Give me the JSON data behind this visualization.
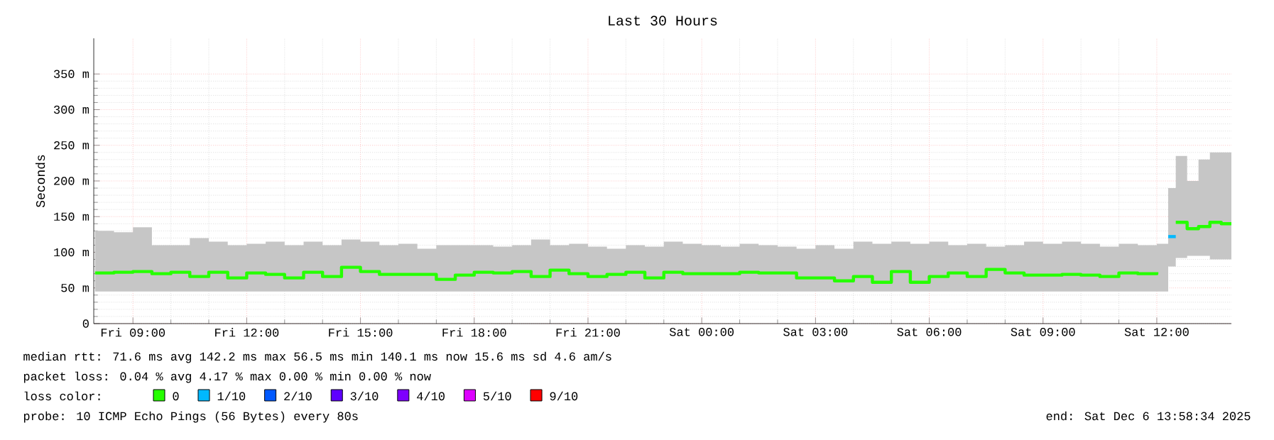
{
  "chart_data": {
    "type": "step",
    "title": "Last 30 Hours",
    "ylabel": "Seconds",
    "xlim": [
      "2025-12-05T07:58",
      "2025-12-06T13:58"
    ],
    "xticks": [
      {
        "value": "2025-12-05T09:00",
        "label": "Fri 09:00"
      },
      {
        "value": "2025-12-05T12:00",
        "label": "Fri 12:00"
      },
      {
        "value": "2025-12-05T15:00",
        "label": "Fri 15:00"
      },
      {
        "value": "2025-12-05T18:00",
        "label": "Fri 18:00"
      },
      {
        "value": "2025-12-05T21:00",
        "label": "Fri 21:00"
      },
      {
        "value": "2025-12-06T00:00",
        "label": "Sat 00:00"
      },
      {
        "value": "2025-12-06T03:00",
        "label": "Sat 03:00"
      },
      {
        "value": "2025-12-06T06:00",
        "label": "Sat 06:00"
      },
      {
        "value": "2025-12-06T09:00",
        "label": "Sat 09:00"
      },
      {
        "value": "2025-12-06T12:00",
        "label": "Sat 12:00"
      }
    ],
    "ylim": [
      0,
      400
    ],
    "yticks": [
      0,
      {
        "value": 50,
        "label": "50 m"
      },
      {
        "value": 100,
        "label": "100 m"
      },
      {
        "value": 150,
        "label": "150 m"
      },
      {
        "value": 200,
        "label": "200 m"
      },
      {
        "value": 250,
        "label": "250 m"
      },
      {
        "value": 300,
        "label": "300 m"
      },
      {
        "value": 350,
        "label": "350 m"
      }
    ],
    "grid": true,
    "legend": "bottom",
    "legend_title": "loss color:",
    "x": [
      "2025-12-05T08:00",
      "2025-12-05T08:30",
      "2025-12-05T09:00",
      "2025-12-05T09:30",
      "2025-12-05T10:00",
      "2025-12-05T10:30",
      "2025-12-05T11:00",
      "2025-12-05T11:30",
      "2025-12-05T12:00",
      "2025-12-05T12:30",
      "2025-12-05T13:00",
      "2025-12-05T13:30",
      "2025-12-05T14:00",
      "2025-12-05T14:30",
      "2025-12-05T15:00",
      "2025-12-05T15:30",
      "2025-12-05T16:00",
      "2025-12-05T16:30",
      "2025-12-05T17:00",
      "2025-12-05T17:30",
      "2025-12-05T18:00",
      "2025-12-05T18:30",
      "2025-12-05T19:00",
      "2025-12-05T19:30",
      "2025-12-05T20:00",
      "2025-12-05T20:30",
      "2025-12-05T21:00",
      "2025-12-05T21:30",
      "2025-12-05T22:00",
      "2025-12-05T22:30",
      "2025-12-05T23:00",
      "2025-12-05T23:30",
      "2025-12-06T00:00",
      "2025-12-06T00:30",
      "2025-12-06T01:00",
      "2025-12-06T01:30",
      "2025-12-06T02:00",
      "2025-12-06T02:30",
      "2025-12-06T03:00",
      "2025-12-06T03:30",
      "2025-12-06T04:00",
      "2025-12-06T04:30",
      "2025-12-06T05:00",
      "2025-12-06T05:30",
      "2025-12-06T06:00",
      "2025-12-06T06:30",
      "2025-12-06T07:00",
      "2025-12-06T07:30",
      "2025-12-06T08:00",
      "2025-12-06T08:30",
      "2025-12-06T09:00",
      "2025-12-06T09:30",
      "2025-12-06T10:00",
      "2025-12-06T10:30",
      "2025-12-06T11:00",
      "2025-12-06T11:30",
      "2025-12-06T12:00",
      "2025-12-06T12:18",
      "2025-12-06T12:30",
      "2025-12-06T12:48",
      "2025-12-06T13:06",
      "2025-12-06T13:24",
      "2025-12-06T13:42",
      "2025-12-06T13:58"
    ],
    "series": [
      {
        "name": "0",
        "color": "#26ff00",
        "values": [
          71,
          72,
          73,
          70,
          72,
          66,
          72,
          64,
          71,
          69,
          64,
          72,
          66,
          79,
          73,
          69,
          69,
          69,
          62,
          68,
          72,
          71,
          73,
          66,
          75,
          70,
          66,
          69,
          72,
          64,
          72,
          70,
          70,
          70,
          72,
          71,
          71,
          64,
          64,
          60,
          66,
          58,
          73,
          58,
          66,
          71,
          66,
          76,
          71,
          68,
          68,
          69,
          68,
          66,
          71,
          70,
          72,
          null,
          142,
          133,
          136,
          142,
          140,
          140
        ],
        "upper": [
          130,
          128,
          135,
          110,
          110,
          120,
          115,
          110,
          112,
          115,
          110,
          115,
          110,
          118,
          115,
          110,
          112,
          105,
          110,
          110,
          110,
          108,
          110,
          118,
          110,
          112,
          108,
          105,
          110,
          108,
          115,
          112,
          110,
          108,
          112,
          110,
          108,
          105,
          110,
          105,
          115,
          112,
          115,
          112,
          115,
          110,
          112,
          108,
          110,
          115,
          112,
          115,
          112,
          108,
          112,
          110,
          112,
          190,
          235,
          200,
          230,
          240,
          240,
          240
        ],
        "lower": [
          45,
          45,
          45,
          45,
          45,
          45,
          45,
          45,
          45,
          45,
          45,
          45,
          45,
          45,
          45,
          45,
          45,
          45,
          45,
          45,
          45,
          45,
          45,
          45,
          45,
          45,
          45,
          45,
          45,
          45,
          45,
          45,
          45,
          45,
          45,
          45,
          45,
          45,
          45,
          45,
          45,
          45,
          45,
          45,
          45,
          45,
          45,
          45,
          45,
          45,
          45,
          45,
          45,
          45,
          45,
          45,
          45,
          80,
          92,
          95,
          95,
          90,
          90,
          90
        ]
      },
      {
        "name": "1/10",
        "color": "#00b8ff",
        "x": [
          "2025-12-06T12:18",
          "2025-12-06T12:30"
        ],
        "values": [
          122,
          122
        ]
      },
      {
        "name": "2/10",
        "color": "#0059ff",
        "values": [
          null,
          null,
          null,
          null,
          null,
          null,
          null,
          null,
          null,
          null,
          null,
          null,
          null,
          null,
          null,
          null,
          null,
          null,
          null,
          null,
          null,
          null,
          null,
          null,
          null,
          null,
          null,
          null,
          null,
          null,
          null,
          null,
          null,
          null,
          null,
          null,
          null,
          null,
          null,
          null,
          null,
          null,
          null,
          null,
          null,
          null,
          null,
          null,
          null,
          null,
          null,
          null,
          null,
          null,
          null,
          null,
          null,
          null,
          null,
          null,
          null,
          null,
          null,
          null
        ]
      },
      {
        "name": "3/10",
        "color": "#5e00ff",
        "values": [
          null,
          null,
          null,
          null,
          null,
          null,
          null,
          null,
          null,
          null,
          null,
          null,
          null,
          null,
          null,
          null,
          null,
          null,
          null,
          null,
          null,
          null,
          null,
          null,
          null,
          null,
          null,
          null,
          null,
          null,
          null,
          null,
          null,
          null,
          null,
          null,
          null,
          null,
          null,
          null,
          null,
          null,
          null,
          null,
          null,
          null,
          null,
          null,
          null,
          null,
          null,
          null,
          null,
          null,
          null,
          null,
          null,
          null,
          null,
          null,
          null,
          null,
          null,
          null
        ]
      },
      {
        "name": "4/10",
        "color": "#7e00ff",
        "values": [
          null,
          null,
          null,
          null,
          null,
          null,
          null,
          null,
          null,
          null,
          null,
          null,
          null,
          null,
          null,
          null,
          null,
          null,
          null,
          null,
          null,
          null,
          null,
          null,
          null,
          null,
          null,
          null,
          null,
          null,
          null,
          null,
          null,
          null,
          null,
          null,
          null,
          null,
          null,
          null,
          null,
          null,
          null,
          null,
          null,
          null,
          null,
          null,
          null,
          null,
          null,
          null,
          null,
          null,
          null,
          null,
          null,
          null,
          null,
          null,
          null,
          null,
          null,
          null
        ]
      },
      {
        "name": "5/10",
        "color": "#dd00ff",
        "values": [
          null,
          null,
          null,
          null,
          null,
          null,
          null,
          null,
          null,
          null,
          null,
          null,
          null,
          null,
          null,
          null,
          null,
          null,
          null,
          null,
          null,
          null,
          null,
          null,
          null,
          null,
          null,
          null,
          null,
          null,
          null,
          null,
          null,
          null,
          null,
          null,
          null,
          null,
          null,
          null,
          null,
          null,
          null,
          null,
          null,
          null,
          null,
          null,
          null,
          null,
          null,
          null,
          null,
          null,
          null,
          null,
          null,
          null,
          null,
          null,
          null,
          null,
          null,
          null
        ]
      },
      {
        "name": "9/10",
        "color": "#ff0000",
        "values": [
          null,
          null,
          null,
          null,
          null,
          null,
          null,
          null,
          null,
          null,
          null,
          null,
          null,
          null,
          null,
          null,
          null,
          null,
          null,
          null,
          null,
          null,
          null,
          null,
          null,
          null,
          null,
          null,
          null,
          null,
          null,
          null,
          null,
          null,
          null,
          null,
          null,
          null,
          null,
          null,
          null,
          null,
          null,
          null,
          null,
          null,
          null,
          null,
          null,
          null,
          null,
          null,
          null,
          null,
          null,
          null,
          null,
          null,
          null,
          null,
          null,
          null,
          null,
          null
        ]
      }
    ],
    "annotations": [
      "median rtt:  71.6 ms avg  142.2 ms max  56.5 ms min  140.1 ms now  15.6 ms sd  4.6   am/s",
      "packet loss: 0.04 % avg  4.17 % max  0.00 % min  0.00 % now",
      "probe:       10 ICMP Echo Pings (56 Bytes) every 80s",
      "end: Sat Dec  6 13:58:34 2025"
    ]
  }
}
